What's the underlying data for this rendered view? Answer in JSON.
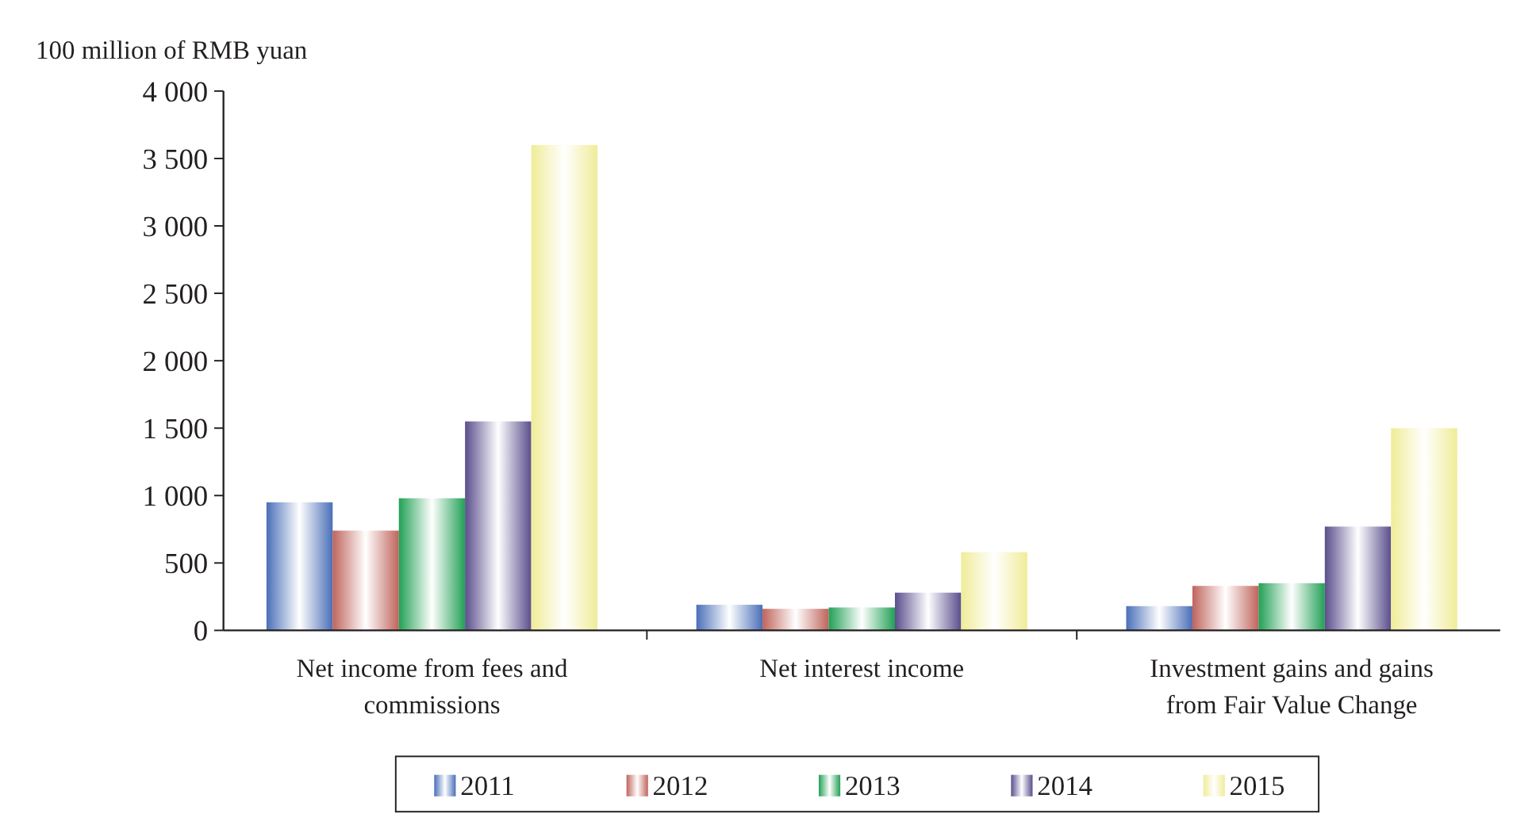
{
  "chart_data": {
    "type": "bar",
    "ylabel": "100 million of RMB yuan",
    "categories": [
      "Net income from fees and commissions",
      "Net interest income",
      "Investment gains and gains from Fair Value Change"
    ],
    "series": [
      {
        "name": "2011",
        "color": "#4a6fb8",
        "values": [
          950,
          190,
          180
        ]
      },
      {
        "name": "2012",
        "color": "#c0645c",
        "values": [
          740,
          160,
          330
        ]
      },
      {
        "name": "2013",
        "color": "#22a055",
        "values": [
          980,
          170,
          350
        ]
      },
      {
        "name": "2014",
        "color": "#5a4e8c",
        "values": [
          1550,
          280,
          770
        ]
      },
      {
        "name": "2015",
        "color": "#f0ec98",
        "values": [
          3600,
          580,
          1500
        ]
      }
    ],
    "ylim": [
      0,
      4000
    ],
    "yticks": [
      {
        "value": 0,
        "label": "0"
      },
      {
        "value": 500,
        "label": "500"
      },
      {
        "value": 1000,
        "label": "1 000"
      },
      {
        "value": 1500,
        "label": "1 500"
      },
      {
        "value": 2000,
        "label": "2 000"
      },
      {
        "value": 2500,
        "label": "2 500"
      },
      {
        "value": 3000,
        "label": "3 000"
      },
      {
        "value": 3500,
        "label": "3 500"
      },
      {
        "value": 4000,
        "label": "4 000"
      }
    ],
    "legend": "bottom",
    "grid": false
  }
}
